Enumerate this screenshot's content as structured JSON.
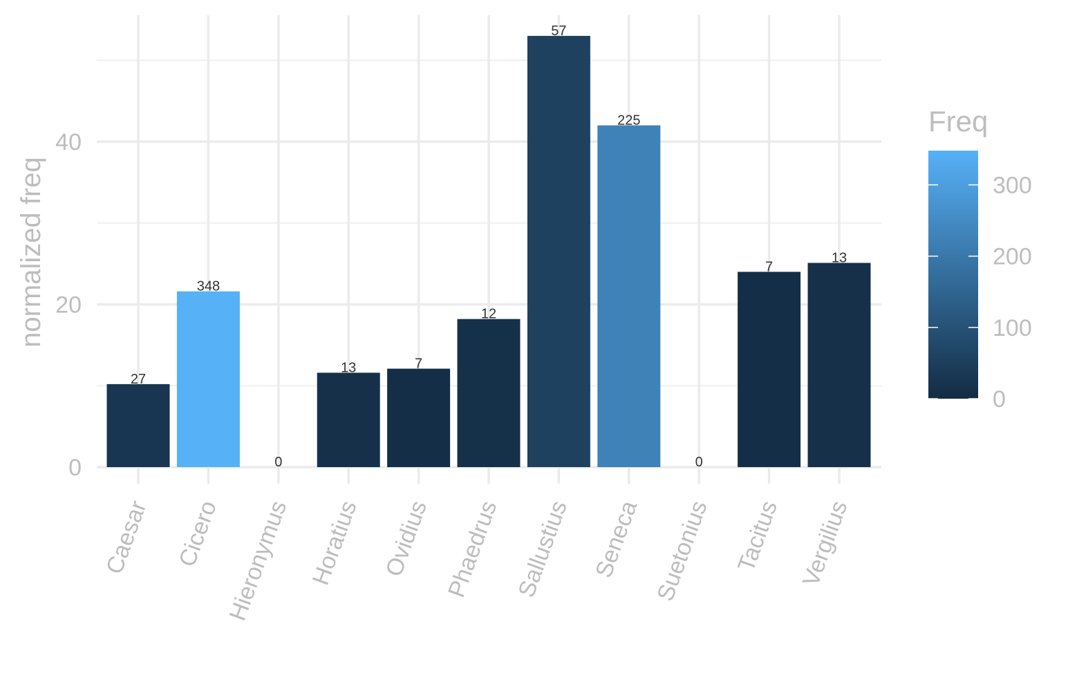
{
  "chart_data": {
    "type": "bar",
    "categories": [
      "Caesar",
      "Cicero",
      "Hieronymus",
      "Horatius",
      "Ovidius",
      "Phaedrus",
      "Sallustius",
      "Seneca",
      "Suetonius",
      "Tacitus",
      "Vergilius"
    ],
    "values": [
      10.2,
      21.6,
      0,
      11.6,
      12.1,
      18.2,
      53.0,
      42.0,
      0,
      24.0,
      25.1
    ],
    "freq": [
      27,
      348,
      0,
      13,
      7,
      12,
      57,
      225,
      0,
      7,
      13
    ],
    "bar_labels": [
      "27",
      "348",
      "0",
      "13",
      "7",
      "12",
      "57",
      "225",
      "0",
      "7",
      "13"
    ],
    "title": "",
    "xlabel": "",
    "ylabel": "normalized freq",
    "ylim": [
      0,
      55
    ],
    "yticks": [
      0,
      20,
      40
    ],
    "grid": true,
    "legend": {
      "title": "Freq",
      "placement": "right",
      "range": [
        0,
        348
      ],
      "ticks": [
        0,
        100,
        200,
        300
      ],
      "color_low": "#132b43",
      "color_high": "#56b1f7"
    }
  }
}
